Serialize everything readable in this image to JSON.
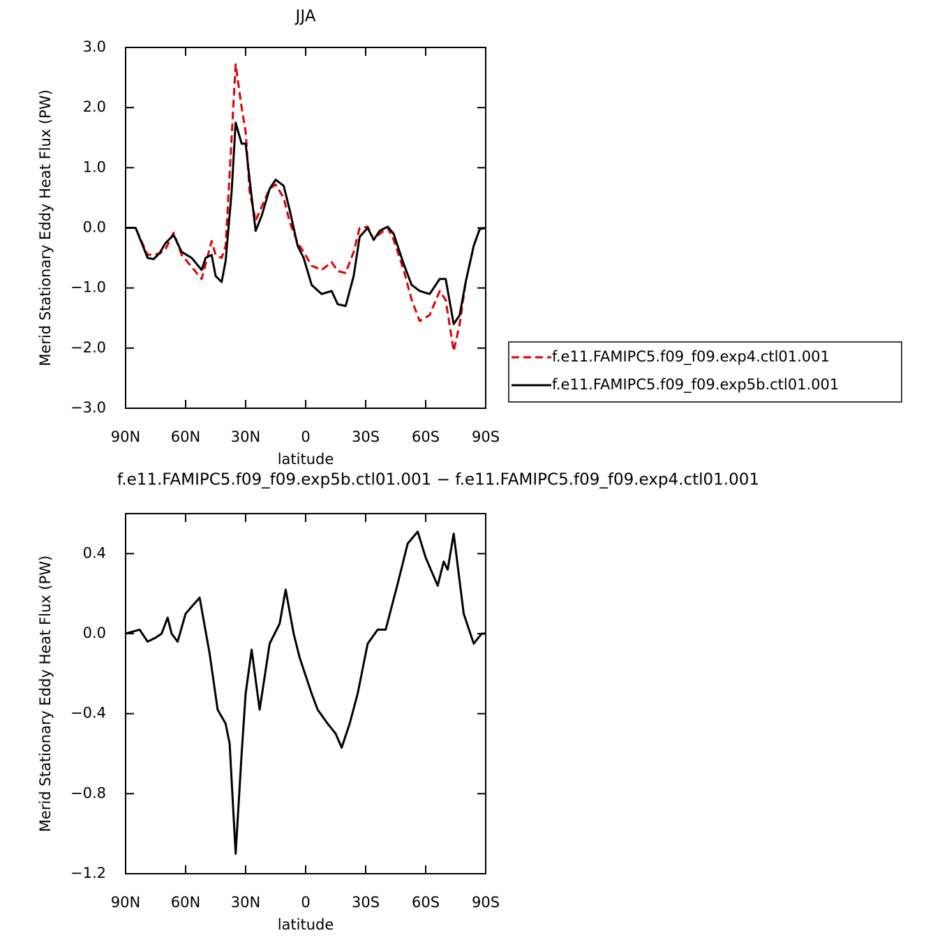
{
  "chart_data": [
    {
      "type": "line",
      "title": "JJA",
      "xlabel": "latitude",
      "ylabel": "Merid Stationary Eddy Heat Flux (PW)",
      "x": [
        90,
        85,
        79,
        76,
        73,
        70,
        66,
        62,
        57,
        52,
        50,
        47,
        45,
        42,
        40,
        37,
        35,
        32,
        30,
        28,
        25,
        22,
        18,
        15,
        11,
        8,
        4,
        1,
        -3,
        -8,
        -13,
        -16,
        -20,
        -24,
        -27,
        -31,
        -34,
        -37,
        -41,
        -44,
        -49,
        -53,
        -57,
        -62,
        -67,
        -70,
        -74,
        -77,
        -80,
        -84,
        -87,
        -90
      ],
      "series": [
        {
          "name": "f.e11.FAMIPC5.f09_f09.exp4.ctl01.001",
          "color": "#e00000",
          "dash": true,
          "values": [
            0,
            0,
            -0.45,
            -0.44,
            -0.43,
            -0.35,
            -0.08,
            -0.45,
            -0.65,
            -0.85,
            -0.6,
            -0.22,
            -0.45,
            -0.5,
            -0.3,
            1.5,
            2.72,
            2.0,
            1.6,
            0.6,
            0.12,
            0.35,
            0.65,
            0.72,
            0.5,
            0.1,
            -0.25,
            -0.4,
            -0.63,
            -0.7,
            -0.57,
            -0.72,
            -0.75,
            -0.4,
            0.0,
            0.02,
            -0.2,
            -0.1,
            0.0,
            -0.2,
            -0.7,
            -1.2,
            -1.55,
            -1.45,
            -1.05,
            -1.2,
            -2.05,
            -1.6,
            -0.9,
            -0.3,
            -0.02,
            0
          ]
        },
        {
          "name": "f.e11.FAMIPC5.f09_f09.exp5b.ctl01.001",
          "color": "#000000",
          "dash": false,
          "values": [
            0,
            0,
            -0.5,
            -0.52,
            -0.42,
            -0.25,
            -0.12,
            -0.4,
            -0.5,
            -0.7,
            -0.5,
            -0.45,
            -0.8,
            -0.9,
            -0.55,
            0.6,
            1.75,
            1.4,
            1.4,
            0.8,
            -0.05,
            0.2,
            0.65,
            0.8,
            0.7,
            0.3,
            -0.3,
            -0.5,
            -0.95,
            -1.1,
            -1.05,
            -1.27,
            -1.3,
            -0.8,
            -0.15,
            0.0,
            -0.2,
            -0.05,
            0.02,
            -0.1,
            -0.6,
            -0.95,
            -1.05,
            -1.1,
            -0.85,
            -0.85,
            -1.6,
            -1.45,
            -0.9,
            -0.3,
            -0.02,
            0
          ]
        }
      ],
      "xlim": [
        90,
        -90
      ],
      "xticks": [
        {
          "value": 90,
          "label": "90N"
        },
        {
          "value": 60,
          "label": "60N"
        },
        {
          "value": 30,
          "label": "30N"
        },
        0,
        {
          "value": -30,
          "label": "30S"
        },
        {
          "value": -60,
          "label": "60S"
        },
        {
          "value": -90,
          "label": "90S"
        }
      ],
      "ylim": [
        -3,
        3
      ],
      "yticks": [
        {
          "value": -3,
          "label": "−3.0"
        },
        {
          "value": -2,
          "label": "−2.0"
        },
        {
          "value": -1,
          "label": "−1.0"
        },
        {
          "value": 0,
          "label": "0.0"
        },
        {
          "value": 1,
          "label": "1.0"
        },
        {
          "value": 2,
          "label": "2.0"
        },
        {
          "value": 3,
          "label": "3.0"
        }
      ],
      "legend": "right"
    },
    {
      "type": "line",
      "title": "f.e11.FAMIPC5.f09_f09.exp5b.ctl01.001 − f.e11.FAMIPC5.f09_f09.exp4.ctl01.001",
      "xlabel": "latitude",
      "ylabel": "Merid Stationary Eddy Heat Flux (PW)",
      "x": [
        90,
        83,
        79,
        75,
        72,
        69,
        67,
        64,
        60,
        53,
        48,
        44,
        40,
        38,
        35,
        32,
        30,
        27,
        23,
        18,
        13,
        10,
        6,
        3,
        -3,
        -6,
        -11,
        -15,
        -18,
        -22,
        -26,
        -31,
        -36,
        -40,
        -46,
        -51,
        -56,
        -60,
        -66,
        -69,
        -71,
        -74,
        -79,
        -84,
        -88,
        -90
      ],
      "series": [
        {
          "color": "#000000",
          "dash": false,
          "values": [
            0,
            0.02,
            -0.04,
            -0.02,
            0,
            0.08,
            0,
            -0.04,
            0.1,
            0.18,
            -0.1,
            -0.38,
            -0.45,
            -0.55,
            -1.1,
            -0.6,
            -0.3,
            -0.08,
            -0.38,
            -0.05,
            0.05,
            0.22,
            0,
            -0.12,
            -0.3,
            -0.38,
            -0.45,
            -0.5,
            -0.57,
            -0.45,
            -0.3,
            -0.05,
            0.02,
            0.02,
            0.25,
            0.45,
            0.51,
            0.38,
            0.24,
            0.36,
            0.32,
            0.5,
            0.1,
            -0.05,
            0,
            0
          ]
        }
      ],
      "xlim": [
        90,
        -90
      ],
      "xticks": [
        {
          "value": 90,
          "label": "90N"
        },
        {
          "value": 60,
          "label": "60N"
        },
        {
          "value": 30,
          "label": "30N"
        },
        0,
        {
          "value": -30,
          "label": "30S"
        },
        {
          "value": -60,
          "label": "60S"
        },
        {
          "value": -90,
          "label": "90S"
        }
      ],
      "ylim": [
        -1.2,
        0.6
      ],
      "yticks": [
        {
          "value": -1.2,
          "label": "−1.2"
        },
        {
          "value": -0.8,
          "label": "−0.8"
        },
        {
          "value": -0.4,
          "label": "−0.4"
        },
        {
          "value": 0,
          "label": "0.0"
        },
        0.4
      ]
    }
  ]
}
